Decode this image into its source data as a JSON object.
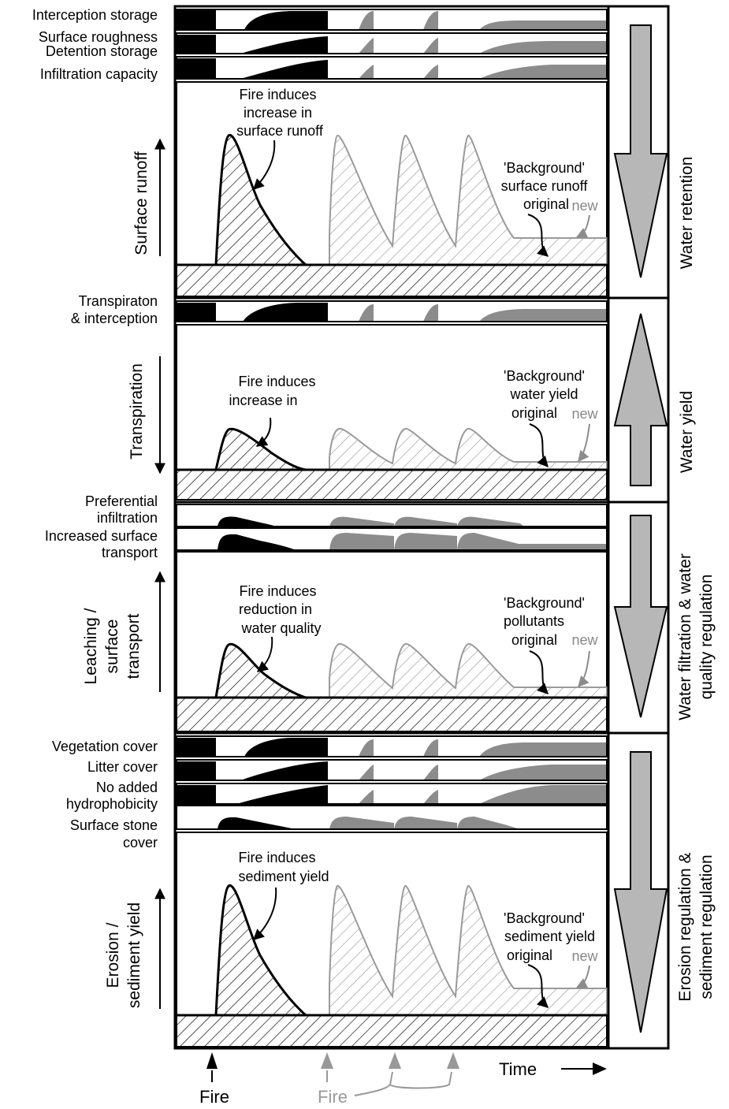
{
  "colors": {
    "original": "#000000",
    "repeat": "#8c8c8c",
    "arrow_fill": "#b7b7b7",
    "new_label": "#888888"
  },
  "panels": [
    {
      "id": "runoff",
      "strip_labels": [
        "Interception storage",
        "Surface roughness",
        "Detention storage",
        "Infiltration capacity"
      ],
      "axis_label": [
        "Surface runoff"
      ],
      "axis_direction": "up",
      "fire_note": [
        "Fire induces",
        "increase in",
        "surface runoff"
      ],
      "background_note": [
        "'Background'",
        "surface runoff",
        "original"
      ],
      "new_label": "new",
      "service_label": [
        "Water retention"
      ],
      "service_arrow": "down"
    },
    {
      "id": "transpiration",
      "strip_labels": [
        "Transpiraton",
        "& interception"
      ],
      "axis_label": [
        "Transpiration"
      ],
      "axis_direction": "down",
      "fire_note": [
        "Fire induces",
        "increase in"
      ],
      "background_note": [
        "'Background'",
        "water yield",
        "original"
      ],
      "new_label": "new",
      "service_label": [
        "Water yield"
      ],
      "service_arrow": "up"
    },
    {
      "id": "leaching",
      "strip_labels": [
        "Preferential",
        "infiltration",
        "Increased surface",
        "transport"
      ],
      "axis_label": [
        "Leaching /",
        "surface",
        "transport"
      ],
      "axis_direction": "up",
      "fire_note": [
        "Fire induces",
        "reduction in",
        "water quality"
      ],
      "background_note": [
        "'Background'",
        "pollutants",
        "original"
      ],
      "new_label": "new",
      "service_label": [
        "Water filtration & water",
        "quality regulation"
      ],
      "service_arrow": "down"
    },
    {
      "id": "erosion",
      "strip_labels": [
        "Vegetation cover",
        "Litter cover",
        "No added",
        "hydrophobicity",
        "Surface stone",
        "cover"
      ],
      "axis_label": [
        "Erosion /",
        "sediment yield"
      ],
      "axis_direction": "up",
      "fire_note": [
        "Fire induces",
        "sediment yield"
      ],
      "background_note": [
        "'Background'",
        "sediment yield",
        "original"
      ],
      "new_label": "new",
      "service_label": [
        "Erosion regulation &",
        "sediment regulation"
      ],
      "service_arrow": "down"
    }
  ],
  "x_axis": {
    "label": "Time"
  },
  "fire_events": {
    "first_label": "Fire",
    "repeat_label": "Fire"
  }
}
